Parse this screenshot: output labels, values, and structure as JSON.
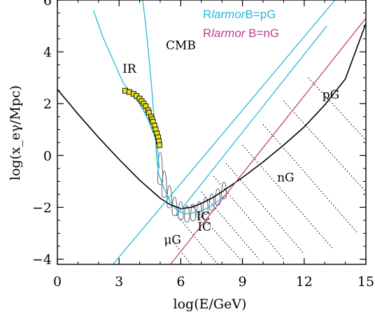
{
  "chart_data": {
    "type": "line",
    "xlabel": "log(E/GeV)",
    "ylabel": "log(x_eγ/Mpc)",
    "xlim": [
      0,
      15
    ],
    "ylim": [
      -4.2,
      6
    ],
    "xticks": [
      0,
      3,
      6,
      9,
      12,
      15
    ],
    "yticks": [
      -4,
      -2,
      0,
      2,
      4,
      6
    ],
    "colors": {
      "cyan": "#2ab7d6",
      "magenta": "#c0408f",
      "black": "#000000",
      "marker_fill": "#f2e21a",
      "gray": "#555566"
    },
    "annotations": [
      {
        "id": "cmb",
        "text": "CMB",
        "x": 6.0,
        "y": 4.1,
        "color": "#000000"
      },
      {
        "id": "ir",
        "text": "IR",
        "x": 3.5,
        "y": 3.2,
        "color": "#000000"
      },
      {
        "id": "pg",
        "text": "pG",
        "x": 13.3,
        "y": 2.2,
        "color": "#000000"
      },
      {
        "id": "ng",
        "text": "nG",
        "x": 11.1,
        "y": -1.0,
        "color": "#000000"
      },
      {
        "id": "ic1",
        "text": "IC",
        "x": 7.1,
        "y": -2.5,
        "color": "#000000"
      },
      {
        "id": "ic2",
        "text": "IC",
        "x": 7.15,
        "y": -2.9,
        "color": "#000000"
      },
      {
        "id": "mug",
        "text": "μG",
        "x": 5.6,
        "y": -3.4,
        "color": "#000000"
      }
    ],
    "legend": [
      {
        "label_prefix": "R",
        "label_ital": "larmor",
        "label_suffix": "B=pG",
        "color": "#2ab7d6"
      },
      {
        "label_prefix": "R",
        "label_ital": "larmor",
        "label_suffix": " B=nG",
        "color": "#c0408f"
      }
    ],
    "series": [
      {
        "id": "ir_curve",
        "color": "#2ab7d6",
        "x": [
          1.75,
          2.2,
          2.7,
          3.2,
          3.6,
          4.0,
          4.4,
          4.7,
          4.85,
          4.95
        ],
        "y": [
          5.6,
          4.6,
          3.7,
          2.8,
          2.4,
          2.0,
          1.4,
          0.8,
          0.4,
          -0.5
        ]
      },
      {
        "id": "cmb_curve",
        "color": "#2ab7d6",
        "x": [
          4.15,
          4.3,
          4.45,
          4.6,
          4.72,
          4.82,
          4.92
        ],
        "y": [
          6.0,
          5.0,
          3.8,
          2.5,
          1.2,
          0.0,
          -0.7
        ]
      },
      {
        "id": "ic_path",
        "color": "#2ab7d6",
        "x": [
          4.92,
          5.2,
          5.5,
          5.8,
          6.0,
          6.3,
          6.7,
          7.1,
          7.5,
          7.9,
          8.2
        ],
        "y": [
          -0.7,
          -1.3,
          -1.8,
          -2.1,
          -2.2,
          -2.25,
          -2.2,
          -2.1,
          -1.95,
          -1.7,
          -1.5
        ]
      },
      {
        "id": "total_black",
        "color": "#000000",
        "x": [
          0.0,
          0.5,
          1.0,
          2.0,
          3.0,
          4.0,
          5.0,
          5.5,
          6.0,
          6.5,
          7.0,
          7.5,
          8.0,
          9.0,
          10.0,
          11.0,
          12.0,
          13.0,
          14.0,
          15.0
        ],
        "y": [
          2.55,
          2.08,
          1.6,
          0.7,
          -0.15,
          -0.95,
          -1.65,
          -1.9,
          -2.05,
          -2.0,
          -1.85,
          -1.65,
          -1.4,
          -0.85,
          -0.25,
          0.4,
          1.1,
          1.95,
          2.95,
          5.1
        ]
      },
      {
        "id": "larmor_pg",
        "color": "#2ab7d6",
        "x": [
          2.7,
          13.5
        ],
        "y": [
          -4.2,
          6.0
        ]
      },
      {
        "id": "larmor_pg_bent",
        "color": "#2ab7d6",
        "x": [
          5.8,
          13.1
        ],
        "y": [
          -2.3,
          5.0
        ]
      },
      {
        "id": "larmor_ng",
        "color": "#c0408f",
        "x": [
          5.5,
          15.0
        ],
        "y": [
          -4.2,
          5.3
        ]
      }
    ],
    "ir_markers": {
      "x": [
        3.3,
        3.5,
        3.7,
        3.85,
        4.0,
        4.1,
        4.2,
        4.3,
        4.4,
        4.45,
        4.55,
        4.6,
        4.65,
        4.72,
        4.78,
        4.84,
        4.9,
        4.93,
        4.96
      ],
      "y": [
        2.5,
        2.45,
        2.38,
        2.3,
        2.2,
        2.1,
        2.0,
        1.9,
        1.75,
        1.65,
        1.5,
        1.4,
        1.3,
        1.15,
        1.0,
        0.85,
        0.7,
        0.55,
        0.4
      ]
    },
    "hatch_lines": [
      {
        "x": [
          12.2,
          15.0
        ],
        "y": [
          3.0,
          0.6
        ]
      },
      {
        "x": [
          11.0,
          15.0
        ],
        "y": [
          2.1,
          -1.4
        ]
      },
      {
        "x": [
          10.0,
          14.6
        ],
        "y": [
          1.2,
          -3.0
        ]
      },
      {
        "x": [
          9.0,
          13.4
        ],
        "y": [
          0.4,
          -3.6
        ]
      },
      {
        "x": [
          8.2,
          12.0
        ],
        "y": [
          -0.3,
          -3.8
        ]
      },
      {
        "x": [
          7.6,
          11.0
        ],
        "y": [
          -0.8,
          -4.0
        ]
      },
      {
        "x": [
          7.0,
          9.8
        ],
        "y": [
          -1.4,
          -4.0
        ]
      },
      {
        "x": [
          6.5,
          9.0
        ],
        "y": [
          -1.9,
          -4.1
        ]
      },
      {
        "x": [
          5.8,
          7.8
        ],
        "y": [
          -2.3,
          -4.2
        ]
      },
      {
        "x": [
          5.6,
          6.5
        ],
        "y": [
          -3.3,
          -4.2
        ]
      }
    ],
    "loops": {
      "centers_x": [
        5.0,
        5.2,
        5.45,
        5.7,
        6.0,
        6.3,
        6.6,
        6.9,
        7.2,
        7.5,
        7.8,
        8.1
      ],
      "base_y": [
        -1.0,
        -1.5,
        -1.9,
        -2.2,
        -2.35,
        -2.45,
        -2.4,
        -2.3,
        -2.15,
        -2.0,
        -1.8,
        -1.55
      ],
      "top_y": [
        0.5,
        -0.3,
        -0.9,
        -1.4,
        -1.6,
        -1.75,
        -1.7,
        -1.6,
        -1.45,
        -1.3,
        -1.1,
        -0.85
      ]
    }
  }
}
